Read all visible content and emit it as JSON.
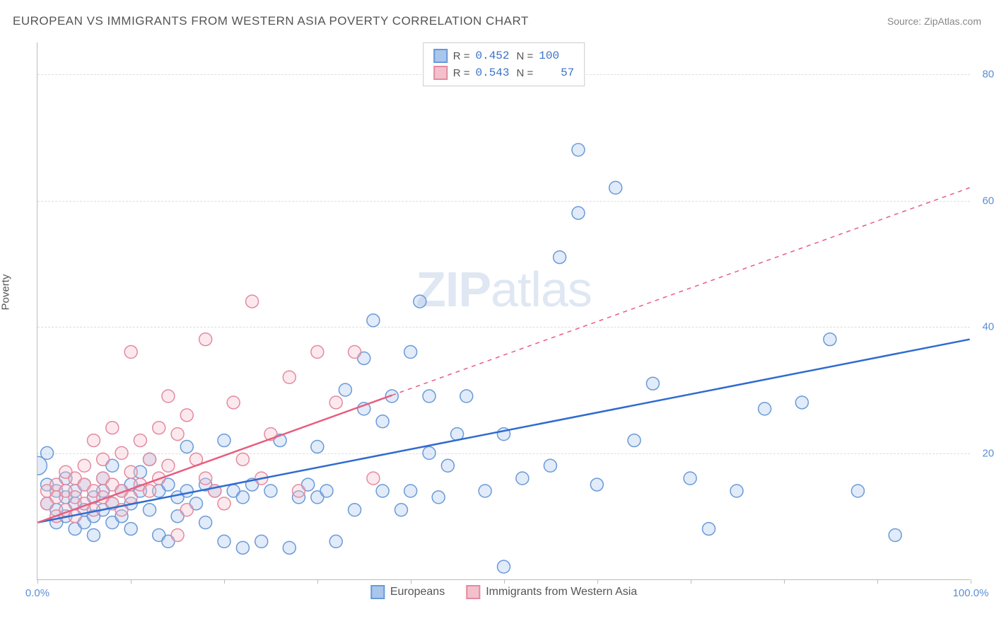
{
  "header": {
    "title": "EUROPEAN VS IMMIGRANTS FROM WESTERN ASIA POVERTY CORRELATION CHART",
    "source_prefix": "Source: ",
    "source_name": "ZipAtlas.com"
  },
  "watermark": {
    "zip": "ZIP",
    "atlas": "atlas"
  },
  "chart": {
    "type": "scatter",
    "ylabel": "Poverty",
    "background_color": "#ffffff",
    "grid_color": "#dddddd",
    "axis_color": "#bbbbbb",
    "tick_label_color": "#5a8fd6",
    "xlim": [
      0,
      100
    ],
    "ylim": [
      0,
      85
    ],
    "xtick_positions": [
      0,
      10,
      20,
      30,
      40,
      50,
      60,
      70,
      80,
      90,
      100
    ],
    "xtick_labels": {
      "0": "0.0%",
      "100": "100.0%"
    },
    "ytick_positions": [
      20,
      40,
      60,
      80
    ],
    "ytick_labels": [
      "20.0%",
      "40.0%",
      "60.0%",
      "80.0%"
    ],
    "marker_radius": 9,
    "marker_radius_large": 13,
    "marker_stroke_width": 1.5,
    "marker_fill_opacity": 0.35,
    "trendline_width": 2.5,
    "series": [
      {
        "name": "Europeans",
        "color_fill": "#a9c6ed",
        "color_stroke": "#6a9ad8",
        "trendline_color": "#2f6bd0",
        "R": "0.452",
        "N": "100",
        "trendline": {
          "x1": 0,
          "y1": 9,
          "x2": 100,
          "y2": 38,
          "solid_until_x": 100
        },
        "points": [
          [
            0,
            18,
            13
          ],
          [
            1,
            15,
            9
          ],
          [
            1,
            12,
            9
          ],
          [
            1,
            20,
            9
          ],
          [
            2,
            9,
            9
          ],
          [
            2,
            14,
            9
          ],
          [
            2,
            11,
            9
          ],
          [
            3,
            10,
            9
          ],
          [
            3,
            13,
            9
          ],
          [
            3,
            16,
            9
          ],
          [
            4,
            8,
            9
          ],
          [
            4,
            12,
            9
          ],
          [
            4,
            14,
            9
          ],
          [
            5,
            9,
            9
          ],
          [
            5,
            11,
            9
          ],
          [
            5,
            15,
            9
          ],
          [
            6,
            10,
            9
          ],
          [
            6,
            13,
            9
          ],
          [
            6,
            7,
            9
          ],
          [
            7,
            14,
            9
          ],
          [
            7,
            11,
            9
          ],
          [
            7,
            16,
            9
          ],
          [
            8,
            12,
            9
          ],
          [
            8,
            9,
            9
          ],
          [
            8,
            18,
            9
          ],
          [
            9,
            10,
            9
          ],
          [
            9,
            14,
            9
          ],
          [
            10,
            12,
            9
          ],
          [
            10,
            15,
            9
          ],
          [
            10,
            8,
            9
          ],
          [
            11,
            14,
            9
          ],
          [
            11,
            17,
            9
          ],
          [
            12,
            11,
            9
          ],
          [
            12,
            19,
            9
          ],
          [
            13,
            7,
            9
          ],
          [
            13,
            14,
            9
          ],
          [
            14,
            6,
            9
          ],
          [
            14,
            15,
            9
          ],
          [
            15,
            13,
            9
          ],
          [
            15,
            10,
            9
          ],
          [
            16,
            14,
            9
          ],
          [
            16,
            21,
            9
          ],
          [
            17,
            12,
            9
          ],
          [
            18,
            15,
            9
          ],
          [
            18,
            9,
            9
          ],
          [
            19,
            14,
            9
          ],
          [
            20,
            22,
            9
          ],
          [
            20,
            6,
            9
          ],
          [
            21,
            14,
            9
          ],
          [
            22,
            5,
            9
          ],
          [
            22,
            13,
            9
          ],
          [
            23,
            15,
            9
          ],
          [
            24,
            6,
            9
          ],
          [
            25,
            14,
            9
          ],
          [
            26,
            22,
            9
          ],
          [
            27,
            5,
            9
          ],
          [
            28,
            13,
            9
          ],
          [
            29,
            15,
            9
          ],
          [
            30,
            21,
            9
          ],
          [
            30,
            13,
            9
          ],
          [
            31,
            14,
            9
          ],
          [
            32,
            6,
            9
          ],
          [
            33,
            30,
            9
          ],
          [
            34,
            11,
            9
          ],
          [
            35,
            35,
            9
          ],
          [
            35,
            27,
            9
          ],
          [
            36,
            41,
            9
          ],
          [
            37,
            25,
            9
          ],
          [
            37,
            14,
            9
          ],
          [
            38,
            29,
            9
          ],
          [
            39,
            11,
            9
          ],
          [
            40,
            14,
            9
          ],
          [
            40,
            36,
            9
          ],
          [
            41,
            44,
            9
          ],
          [
            42,
            20,
            9
          ],
          [
            42,
            29,
            9
          ],
          [
            43,
            13,
            9
          ],
          [
            44,
            18,
            9
          ],
          [
            45,
            23,
            9
          ],
          [
            46,
            29,
            9
          ],
          [
            48,
            14,
            9
          ],
          [
            50,
            23,
            9
          ],
          [
            50,
            2,
            9
          ],
          [
            52,
            16,
            9
          ],
          [
            55,
            18,
            9
          ],
          [
            56,
            51,
            9
          ],
          [
            58,
            68,
            9
          ],
          [
            58,
            58,
            9
          ],
          [
            60,
            15,
            9
          ],
          [
            62,
            62,
            9
          ],
          [
            64,
            22,
            9
          ],
          [
            66,
            31,
            9
          ],
          [
            70,
            16,
            9
          ],
          [
            72,
            8,
            9
          ],
          [
            75,
            14,
            9
          ],
          [
            78,
            27,
            9
          ],
          [
            82,
            28,
            9
          ],
          [
            85,
            38,
            9
          ],
          [
            88,
            14,
            9
          ],
          [
            92,
            7,
            9
          ]
        ]
      },
      {
        "name": "Immigrants from Western Asia",
        "color_fill": "#f3c1cc",
        "color_stroke": "#e48aa0",
        "trendline_color": "#e85d7e",
        "R": "0.543",
        "N": "57",
        "trendline": {
          "x1": 0,
          "y1": 9,
          "x2": 100,
          "y2": 62,
          "solid_until_x": 38
        },
        "points": [
          [
            1,
            12,
            9
          ],
          [
            1,
            14,
            9
          ],
          [
            2,
            10,
            9
          ],
          [
            2,
            13,
            9
          ],
          [
            2,
            15,
            9
          ],
          [
            3,
            11,
            9
          ],
          [
            3,
            14,
            9
          ],
          [
            3,
            17,
            9
          ],
          [
            4,
            10,
            9
          ],
          [
            4,
            13,
            9
          ],
          [
            4,
            16,
            9
          ],
          [
            5,
            12,
            9
          ],
          [
            5,
            15,
            9
          ],
          [
            5,
            18,
            9
          ],
          [
            6,
            11,
            9
          ],
          [
            6,
            14,
            9
          ],
          [
            6,
            22,
            9
          ],
          [
            7,
            13,
            9
          ],
          [
            7,
            16,
            9
          ],
          [
            7,
            19,
            9
          ],
          [
            8,
            12,
            9
          ],
          [
            8,
            15,
            9
          ],
          [
            8,
            24,
            9
          ],
          [
            9,
            14,
            9
          ],
          [
            9,
            11,
            9
          ],
          [
            9,
            20,
            9
          ],
          [
            10,
            13,
            9
          ],
          [
            10,
            17,
            9
          ],
          [
            10,
            36,
            9
          ],
          [
            11,
            15,
            9
          ],
          [
            11,
            22,
            9
          ],
          [
            12,
            14,
            9
          ],
          [
            12,
            19,
            9
          ],
          [
            13,
            16,
            9
          ],
          [
            13,
            24,
            9
          ],
          [
            14,
            18,
            9
          ],
          [
            14,
            29,
            9
          ],
          [
            15,
            7,
            9
          ],
          [
            15,
            23,
            9
          ],
          [
            16,
            11,
            9
          ],
          [
            16,
            26,
            9
          ],
          [
            17,
            19,
            9
          ],
          [
            18,
            16,
            9
          ],
          [
            18,
            38,
            9
          ],
          [
            19,
            14,
            9
          ],
          [
            20,
            12,
            9
          ],
          [
            21,
            28,
            9
          ],
          [
            22,
            19,
            9
          ],
          [
            23,
            44,
            9
          ],
          [
            24,
            16,
            9
          ],
          [
            25,
            23,
            9
          ],
          [
            27,
            32,
            9
          ],
          [
            28,
            14,
            9
          ],
          [
            30,
            36,
            9
          ],
          [
            32,
            28,
            9
          ],
          [
            34,
            36,
            9
          ],
          [
            36,
            16,
            9
          ]
        ]
      }
    ]
  },
  "legend_top": {
    "R_label": "R =",
    "N_label": "N ="
  },
  "legend_bottom": [
    {
      "label": "Europeans",
      "fill": "#a9c6ed",
      "stroke": "#6a9ad8"
    },
    {
      "label": "Immigrants from Western Asia",
      "fill": "#f3c1cc",
      "stroke": "#e48aa0"
    }
  ]
}
